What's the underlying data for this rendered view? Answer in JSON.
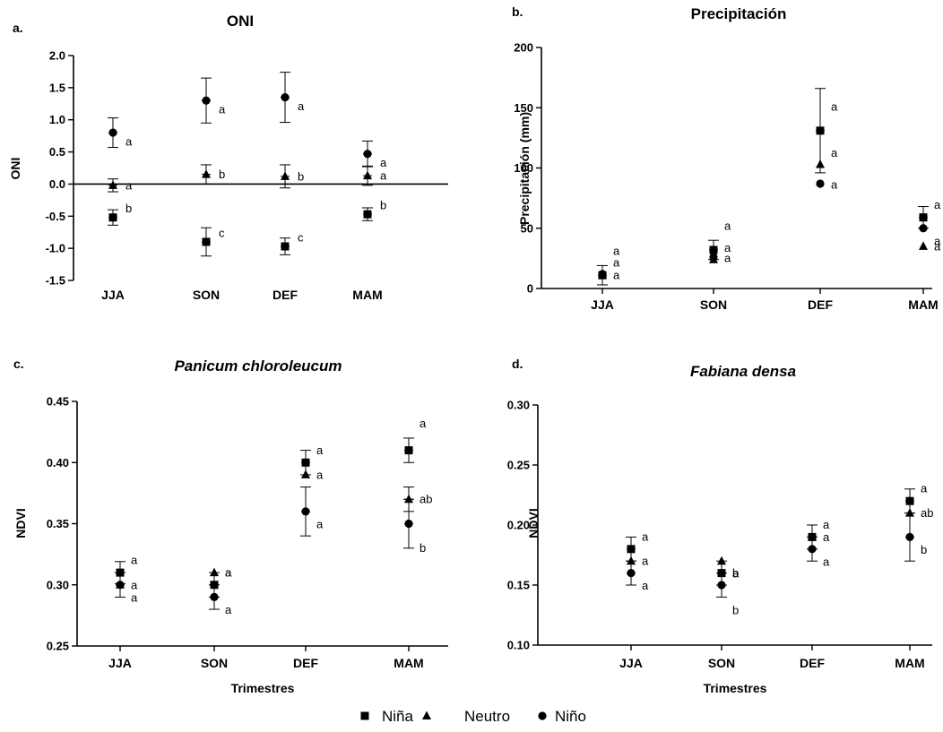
{
  "legend": [
    "Niña",
    "Neutro",
    "Niño"
  ],
  "chart_data": [
    {
      "type": "scatter",
      "panel": "a.",
      "title": "ONI",
      "title_italic": false,
      "xlabel": "",
      "ylabel": "ONI",
      "categories": [
        "JJA",
        "SON",
        "DEF",
        "MAM"
      ],
      "ylim": [
        -1.5,
        2.0
      ],
      "yticks": [
        "2.0",
        "1.5",
        "1.0",
        "0.5",
        "0.0",
        "-0.5",
        "-1.0",
        "-1.5"
      ],
      "zero_line": true,
      "series": [
        {
          "name": "Niña",
          "marker": "square",
          "values": [
            -0.52,
            -0.9,
            -0.97,
            -0.47
          ],
          "err": [
            0.12,
            0.22,
            0.13,
            0.1
          ],
          "sig": [
            "b",
            "c",
            "c",
            "b"
          ]
        },
        {
          "name": "Neutro",
          "marker": "triangle",
          "values": [
            -0.02,
            0.15,
            0.12,
            0.13
          ],
          "err": [
            0.1,
            0.15,
            0.18,
            0.15
          ],
          "sig": [
            "a",
            "b",
            "b",
            "a"
          ]
        },
        {
          "name": "Niño",
          "marker": "circle",
          "values": [
            0.8,
            1.3,
            1.35,
            0.47
          ],
          "err": [
            0.23,
            0.35,
            0.39,
            0.2
          ],
          "sig": [
            "a",
            "a",
            "a",
            "a"
          ]
        }
      ],
      "sig_offsets": [
        [
          -10,
          0,
          10
        ],
        [
          -10,
          0,
          10
        ],
        [
          -10,
          0,
          10
        ],
        [
          -10,
          0,
          10
        ]
      ]
    },
    {
      "type": "scatter",
      "panel": "b.",
      "title": "Precipitación",
      "title_italic": false,
      "xlabel": "",
      "ylabel": "Precipitación (mm)",
      "categories": [
        "JJA",
        "SON",
        "DEF",
        "MAM"
      ],
      "ylim": [
        0,
        200
      ],
      "yticks": [
        "200",
        "150",
        "100",
        "50",
        "0"
      ],
      "zero_line": false,
      "series": [
        {
          "name": "Niña",
          "marker": "square",
          "values": [
            11,
            32,
            131,
            59
          ],
          "err": [
            8,
            8,
            35,
            9
          ],
          "sig": [
            "a",
            "a",
            "a",
            "a"
          ]
        },
        {
          "name": "Neutro",
          "marker": "triangle",
          "values": [
            12,
            24,
            103,
            35
          ],
          "err": [
            0,
            0,
            0,
            0
          ],
          "sig": [
            "a",
            "a",
            "a",
            "a"
          ]
        },
        {
          "name": "Niño",
          "marker": "circle",
          "values": [
            12,
            26,
            87,
            50
          ],
          "err": [
            0,
            0,
            0,
            0
          ],
          "sig": [
            "a",
            "a",
            "a",
            "a"
          ]
        }
      ],
      "sig_offsets": [
        [
          -27,
          -13,
          1
        ],
        [
          -27,
          -13,
          1
        ],
        [
          -27,
          -13,
          1
        ],
        [
          -14,
          0,
          14
        ]
      ]
    },
    {
      "type": "scatter",
      "panel": "c.",
      "title": "Panicum chloroleucum",
      "title_italic": true,
      "xlabel": "Trimestres",
      "ylabel": "NDVI",
      "categories": [
        "JJA",
        "SON",
        "DEF",
        "MAM"
      ],
      "ylim": [
        0.25,
        0.45
      ],
      "yticks": [
        "0.45",
        "0.40",
        "0.35",
        "0.30",
        "0.25"
      ],
      "zero_line": false,
      "series": [
        {
          "name": "Niña",
          "marker": "square",
          "values": [
            0.31,
            0.3,
            0.4,
            0.41
          ],
          "err": [
            0.009,
            0.01,
            0.01,
            0.01
          ],
          "sig": [
            "a",
            "a",
            "a",
            "a"
          ]
        },
        {
          "name": "Neutro",
          "marker": "triangle",
          "values": [
            0.3,
            0.31,
            0.39,
            0.37
          ],
          "err": [
            0,
            0,
            0,
            0.01
          ],
          "sig": [
            "a",
            "a",
            "a",
            "ab"
          ]
        },
        {
          "name": "Niño",
          "marker": "circle",
          "values": [
            0.3,
            0.29,
            0.36,
            0.35
          ],
          "err": [
            0.01,
            0.01,
            0.02,
            0.02
          ],
          "sig": [
            "a",
            "a",
            "a",
            "b"
          ]
        }
      ],
      "sig_offsets": [
        [
          -14,
          0,
          14
        ],
        [
          -14,
          0,
          14
        ],
        [
          -14,
          0,
          14
        ],
        [
          -30,
          0,
          27
        ]
      ]
    },
    {
      "type": "scatter",
      "panel": "d.",
      "title": "Fabiana densa",
      "title_italic": true,
      "xlabel": "Trimestres",
      "ylabel": "NDVI",
      "categories": [
        "JJA",
        "SON",
        "DEF",
        "MAM"
      ],
      "ylim": [
        0.1,
        0.3
      ],
      "yticks": [
        "0.30",
        "0.25",
        "0.20",
        "0.15",
        "0.10"
      ],
      "zero_line": false,
      "series": [
        {
          "name": "Niña",
          "marker": "square",
          "values": [
            0.18,
            0.16,
            0.19,
            0.22
          ],
          "err": [
            0.01,
            0.01,
            0.01,
            0.01
          ],
          "sig": [
            "a",
            "b",
            "a",
            "a"
          ]
        },
        {
          "name": "Neutro",
          "marker": "triangle",
          "values": [
            0.17,
            0.17,
            0.19,
            0.21
          ],
          "err": [
            0,
            0,
            0,
            0
          ],
          "sig": [
            "a",
            "a",
            "a",
            "ab"
          ]
        },
        {
          "name": "Niño",
          "marker": "circle",
          "values": [
            0.16,
            0.15,
            0.18,
            0.19
          ],
          "err": [
            0.01,
            0.01,
            0.01,
            0.02
          ],
          "sig": [
            "a",
            "b",
            "a",
            "b"
          ]
        }
      ],
      "sig_offsets": [
        [
          -14,
          0,
          14
        ],
        [
          0,
          14,
          28
        ],
        [
          -14,
          0,
          14
        ],
        [
          -14,
          0,
          14
        ]
      ]
    }
  ]
}
